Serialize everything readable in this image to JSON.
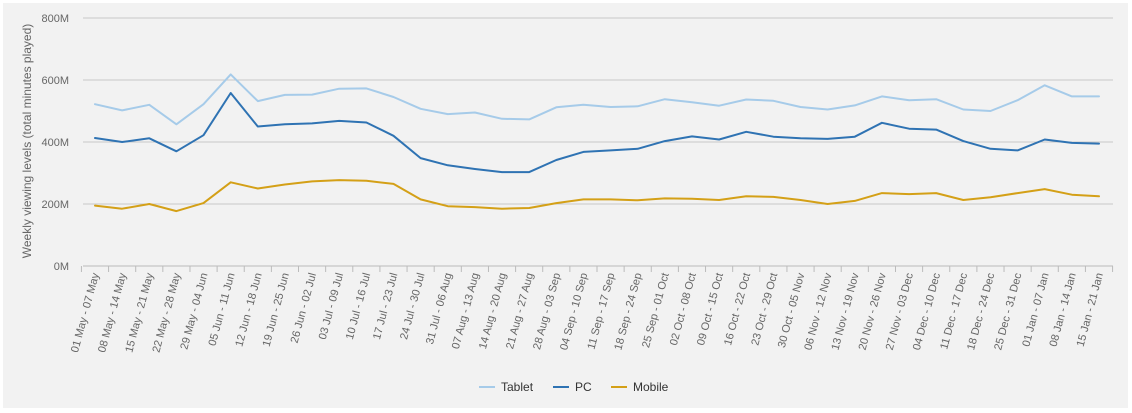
{
  "chart_data": {
    "type": "line",
    "title": "",
    "xlabel": "",
    "ylabel": "Weekly viewing levels (total minutes played)",
    "ylim": [
      0,
      800000000
    ],
    "yticks": [
      {
        "value": 0,
        "label": "0M"
      },
      {
        "value": 200000000,
        "label": "200M"
      },
      {
        "value": 400000000,
        "label": "400M"
      },
      {
        "value": 600000000,
        "label": "600M"
      },
      {
        "value": 800000000,
        "label": "800M"
      }
    ],
    "grid": true,
    "legend_position": "bottom-center",
    "categories": [
      "01 May - 07 May",
      "08 May - 14 May",
      "15 May - 21 May",
      "22 May - 28 May",
      "29 May - 04 Jun",
      "05 Jun - 11 Jun",
      "12 Jun - 18 Jun",
      "19 Jun - 25 Jun",
      "26 Jun - 02 Jul",
      "03 Jul - 09 Jul",
      "10 Jul - 16 Jul",
      "17 Jul - 23 Jul",
      "24 Jul - 30 Jul",
      "31 Jul - 06 Aug",
      "07 Aug - 13 Aug",
      "14 Aug - 20 Aug",
      "21 Aug - 27 Aug",
      "28 Aug - 03 Sep",
      "04 Sep - 10 Sep",
      "11 Sep - 17 Sep",
      "18 Sep - 24 Sep",
      "25 Sep - 01 Oct",
      "02 Oct - 08 Oct",
      "09 Oct - 15 Oct",
      "16 Oct - 22 Oct",
      "23 Oct - 29 Oct",
      "30 Oct - 05 Nov",
      "06 Nov - 12 Nov",
      "13 Nov - 19 Nov",
      "20 Nov - 26 Nov",
      "27 Nov - 03 Dec",
      "04 Dec - 10 Dec",
      "11 Dec - 17 Dec",
      "18 Dec - 24 Dec",
      "25 Dec - 31 Dec",
      "01 Jan - 07 Jan",
      "08 Jan - 14 Jan",
      "15 Jan - 21 Jan"
    ],
    "series": [
      {
        "name": "Tablet",
        "color": "#a6cbe9",
        "values": [
          522,
          502,
          520,
          457,
          522,
          618,
          532,
          552,
          553,
          572,
          573,
          545,
          507,
          490,
          495,
          475,
          473,
          512,
          520,
          513,
          515,
          538,
          528,
          517,
          537,
          533,
          513,
          505,
          518,
          547,
          535,
          538,
          505,
          500,
          535,
          583,
          547,
          547
        ]
      },
      {
        "name": "PC",
        "color": "#2f73b3",
        "values": [
          413,
          400,
          412,
          370,
          422,
          558,
          450,
          457,
          460,
          468,
          463,
          420,
          348,
          325,
          313,
          303,
          303,
          342,
          368,
          373,
          378,
          403,
          418,
          408,
          433,
          417,
          412,
          410,
          417,
          462,
          443,
          440,
          403,
          378,
          373,
          408,
          397,
          395
        ]
      },
      {
        "name": "Mobile",
        "color": "#d4a017",
        "values": [
          195,
          185,
          200,
          177,
          203,
          270,
          250,
          263,
          273,
          277,
          275,
          265,
          215,
          193,
          190,
          185,
          187,
          203,
          215,
          215,
          212,
          218,
          217,
          213,
          225,
          223,
          213,
          200,
          210,
          235,
          232,
          235,
          213,
          222,
          235,
          248,
          230,
          225
        ]
      }
    ]
  }
}
